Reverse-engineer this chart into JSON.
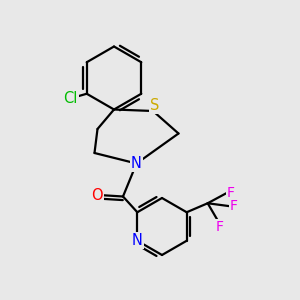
{
  "bg_color": "#e8e8e8",
  "atom_colors": {
    "C": "#000000",
    "Cl": "#00bb00",
    "S": "#ccaa00",
    "N": "#0000ff",
    "O": "#ff0000",
    "F": "#ee00ee"
  },
  "line_color": "#000000",
  "line_width": 1.6,
  "font_size": 10.5,
  "double_sep": 0.12
}
